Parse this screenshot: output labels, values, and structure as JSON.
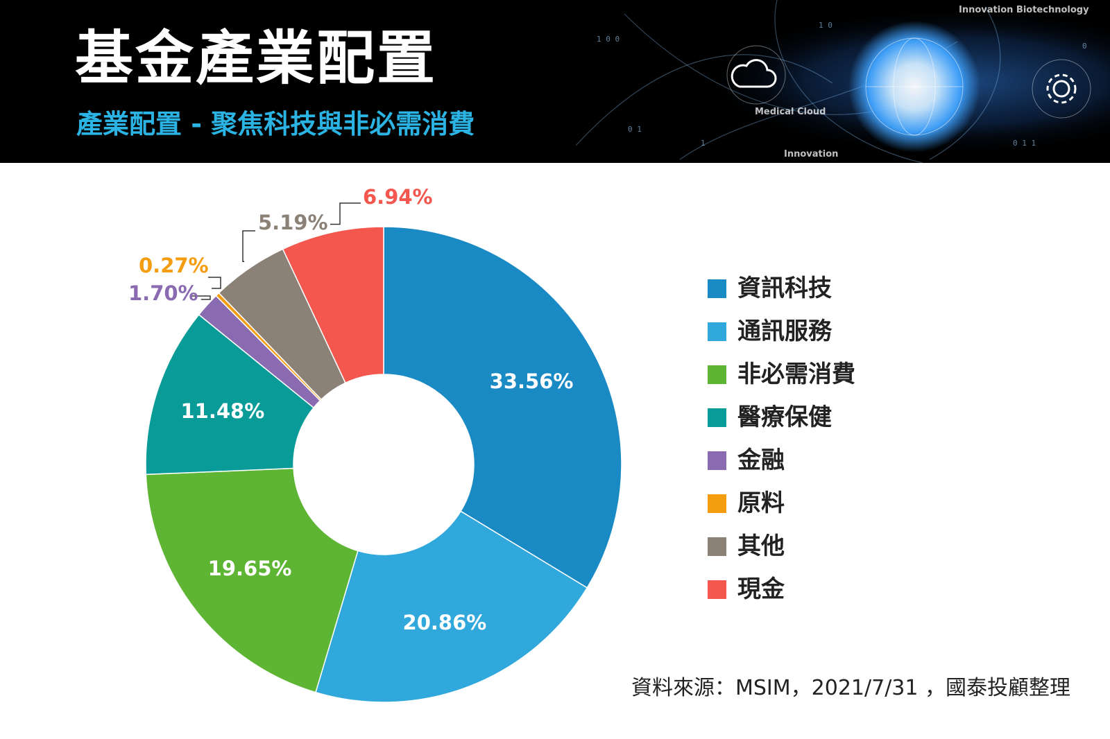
{
  "header": {
    "title": "基金產業配置",
    "subtitle": "產業配置 - 聚焦科技與非必需消費",
    "art_labels": {
      "innovation_biotech": "Innovation Biotechnology",
      "medical_cloud": "Medical Cloud",
      "innovation": "Innovation"
    },
    "colors": {
      "background": "#000000",
      "title": "#ffffff",
      "subtitle": "#2bb3e3",
      "art_glow": "#4fb0ff"
    }
  },
  "chart_data": {
    "type": "pie",
    "style": "donut",
    "title": "",
    "legend_position": "right",
    "start": "12 o'clock, clockwise",
    "slices": [
      {
        "name": "資訊科技",
        "value": 33.56,
        "label": "33.56%",
        "color": "#1a8ac5",
        "label_placement": "inside"
      },
      {
        "name": "通訊服務",
        "value": 20.86,
        "label": "20.86%",
        "color": "#30a8dc",
        "label_placement": "inside"
      },
      {
        "name": "非必需消費",
        "value": 19.65,
        "label": "19.65%",
        "color": "#5db533",
        "label_placement": "inside"
      },
      {
        "name": "醫療保健",
        "value": 11.48,
        "label": "11.48%",
        "color": "#089b97",
        "label_placement": "inside"
      },
      {
        "name": "金融",
        "value": 1.7,
        "label": "1.70%",
        "color": "#8a6ab0",
        "label_placement": "callout"
      },
      {
        "name": "原料",
        "value": 0.27,
        "label": "0.27%",
        "color": "#f59d10",
        "label_placement": "callout"
      },
      {
        "name": "其他",
        "value": 5.19,
        "label": "5.19%",
        "color": "#8b8176",
        "label_placement": "callout"
      },
      {
        "name": "現金",
        "value": 6.94,
        "label": "6.94%",
        "color": "#f3574e",
        "label_placement": "callout"
      }
    ]
  },
  "source_note": "資料來源：MSIM，2021/7/31 ，國泰投顧整理"
}
